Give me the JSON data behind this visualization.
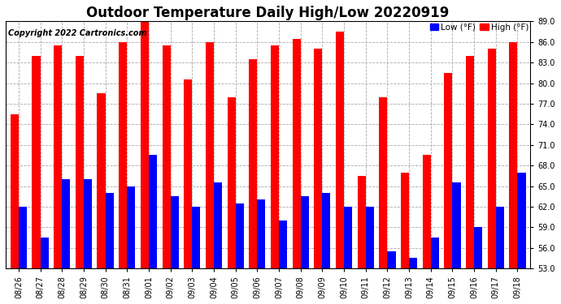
{
  "title": "Outdoor Temperature Daily High/Low 20220919",
  "copyright": "Copyright 2022 Cartronics.com",
  "legend_low": "Low (°F)",
  "legend_high": "High (°F)",
  "dates": [
    "08/26",
    "08/27",
    "08/28",
    "08/29",
    "08/30",
    "08/31",
    "09/01",
    "09/02",
    "09/03",
    "09/04",
    "09/05",
    "09/06",
    "09/07",
    "09/08",
    "09/09",
    "09/10",
    "09/11",
    "09/12",
    "09/13",
    "09/14",
    "09/15",
    "09/16",
    "09/17",
    "09/18"
  ],
  "highs": [
    75.5,
    84.0,
    85.5,
    84.0,
    78.5,
    86.0,
    89.5,
    85.5,
    80.5,
    86.0,
    78.0,
    83.5,
    85.5,
    86.5,
    85.0,
    87.5,
    66.5,
    78.0,
    67.0,
    69.5,
    81.5,
    84.0,
    85.0,
    86.0
  ],
  "lows": [
    62.0,
    57.5,
    66.0,
    66.0,
    64.0,
    65.0,
    69.5,
    63.5,
    62.0,
    65.5,
    62.5,
    63.0,
    60.0,
    63.5,
    64.0,
    62.0,
    62.0,
    55.5,
    54.5,
    57.5,
    65.5,
    59.0,
    62.0,
    67.0
  ],
  "high_color": "#ff0000",
  "low_color": "#0000ff",
  "bg_color": "#ffffff",
  "grid_color": "#aaaaaa",
  "ymin": 53.0,
  "ymax": 89.0,
  "yticks": [
    53.0,
    56.0,
    59.0,
    62.0,
    65.0,
    68.0,
    71.0,
    74.0,
    77.0,
    80.0,
    83.0,
    86.0,
    89.0
  ],
  "title_fontsize": 12,
  "axis_fontsize": 7,
  "copyright_fontsize": 7,
  "bar_width": 0.38
}
